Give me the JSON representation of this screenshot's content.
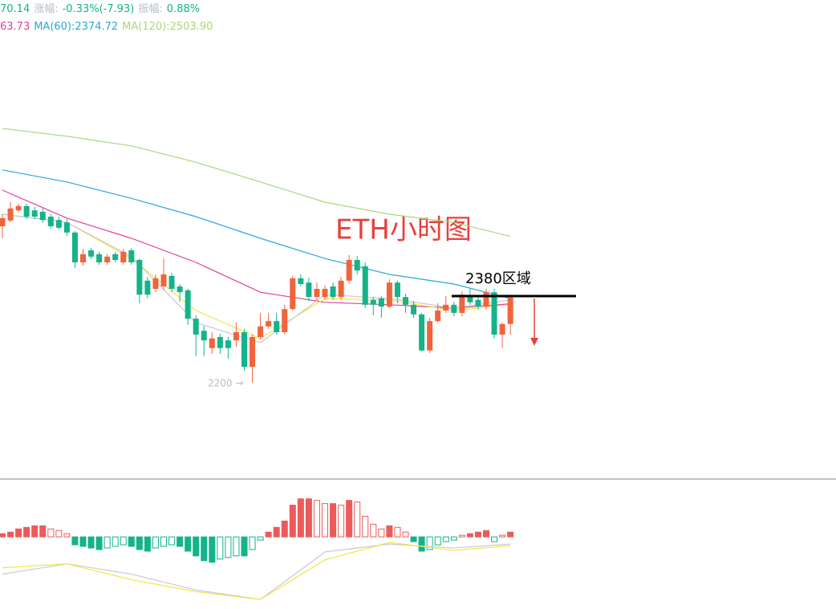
{
  "chart_data": {
    "type": "candlestick",
    "title": "ETH小时图",
    "header": [
      [
        {
          "text": "70.14",
          "color": "#14b38a"
        },
        {
          "text": "涨幅:",
          "color": "#b4bccb"
        },
        {
          "text": "-0.33%(-7.93)",
          "color": "#14b38a"
        },
        {
          "text": "振幅:",
          "color": "#b4bccb"
        },
        {
          "text": "0.88%",
          "color": "#14b38a"
        }
      ],
      [
        {
          "text": "63.73",
          "color": "#e0409a"
        },
        {
          "text": "MA(60):2374.72",
          "color": "#29a8d8"
        },
        {
          "text": "MA(120):2503.90",
          "color": "#a8d878"
        }
      ]
    ],
    "ylim": [
      2000,
      2990
    ],
    "up_color": "#f0643c",
    "down_color": "#14b38a",
    "open": [
      2525,
      2537,
      2558,
      2567,
      2558,
      2555,
      2545,
      2538,
      2533,
      2512,
      2450,
      2475,
      2467,
      2450,
      2467,
      2450,
      2475,
      2455,
      2412,
      2395,
      2400,
      2422,
      2400,
      2392,
      2333,
      2308,
      2272,
      2295,
      2288,
      2288,
      2305,
      2233,
      2295,
      2317,
      2328,
      2305,
      2353,
      2417,
      2408,
      2378,
      2378,
      2400,
      2378,
      2412,
      2455,
      2442,
      2372,
      2375,
      2358,
      2408,
      2378,
      2362,
      2342,
      2267,
      2328,
      2350,
      2362,
      2345,
      2378,
      2372,
      2358,
      2388,
      2300,
      2322
    ],
    "close": [
      2542,
      2562,
      2567,
      2545,
      2545,
      2538,
      2525,
      2522,
      2512,
      2450,
      2467,
      2462,
      2450,
      2462,
      2455,
      2472,
      2450,
      2383,
      2383,
      2417,
      2425,
      2395,
      2388,
      2333,
      2300,
      2288,
      2292,
      2272,
      2272,
      2305,
      2233,
      2295,
      2317,
      2328,
      2305,
      2353,
      2417,
      2405,
      2378,
      2395,
      2395,
      2378,
      2412,
      2455,
      2433,
      2362,
      2362,
      2358,
      2408,
      2378,
      2362,
      2342,
      2267,
      2328,
      2350,
      2362,
      2345,
      2383,
      2367,
      2358,
      2388,
      2300,
      2322,
      2377
    ],
    "high": [
      2550,
      2575,
      2572,
      2572,
      2565,
      2562,
      2550,
      2545,
      2540,
      2515,
      2478,
      2480,
      2472,
      2467,
      2472,
      2478,
      2480,
      2458,
      2420,
      2425,
      2458,
      2428,
      2405,
      2395,
      2340,
      2318,
      2305,
      2302,
      2295,
      2325,
      2312,
      2300,
      2345,
      2345,
      2345,
      2362,
      2422,
      2425,
      2418,
      2408,
      2402,
      2408,
      2420,
      2465,
      2463,
      2450,
      2378,
      2380,
      2415,
      2412,
      2385,
      2370,
      2345,
      2335,
      2365,
      2380,
      2368,
      2390,
      2395,
      2380,
      2395,
      2395,
      2325,
      2383
    ],
    "low": [
      2500,
      2533,
      2555,
      2540,
      2540,
      2532,
      2520,
      2518,
      2505,
      2438,
      2443,
      2457,
      2445,
      2445,
      2450,
      2445,
      2445,
      2365,
      2375,
      2388,
      2392,
      2388,
      2368,
      2320,
      2255,
      2255,
      2260,
      2260,
      2250,
      2275,
      2225,
      2200,
      2290,
      2312,
      2300,
      2300,
      2350,
      2400,
      2370,
      2370,
      2372,
      2372,
      2372,
      2405,
      2425,
      2355,
      2340,
      2335,
      2355,
      2365,
      2345,
      2335,
      2265,
      2262,
      2325,
      2345,
      2338,
      2338,
      2362,
      2352,
      2352,
      2292,
      2272,
      2300
    ],
    "ma_index": [
      0,
      8,
      16,
      24,
      32,
      40,
      48,
      56,
      63
    ],
    "ma_lines": [
      {
        "color": "#a8d878",
        "values": [
          2728,
          2712,
          2692,
          2658,
          2617,
          2575,
          2550,
          2533,
          2504
        ]
      },
      {
        "color": "#29a8d8",
        "values": [
          2642,
          2617,
          2583,
          2545,
          2500,
          2458,
          2425,
          2405,
          2375
        ]
      },
      {
        "color": "#e0409a",
        "values": [
          2600,
          2542,
          2500,
          2450,
          2388,
          2367,
          2362,
          2355,
          2364
        ]
      },
      {
        "color": "#f2e640",
        "values": [
          2550,
          2533,
          2458,
          2350,
          2292,
          2375,
          2372,
          2350,
          2362
        ]
      },
      {
        "color": "#c8c8d8",
        "values": [
          2550,
          2533,
          2462,
          2325,
          2283,
          2383,
          2375,
          2355,
          2372
        ]
      }
    ],
    "level": {
      "value": 2380,
      "label": "2380区域"
    },
    "low_note": {
      "value": 2200,
      "label": "2200 →"
    },
    "macd_ylim": [
      -90,
      70
    ],
    "macd": [
      4,
      6,
      10,
      12,
      14,
      14,
      10,
      8,
      4,
      -10,
      -12,
      -14,
      -16,
      -14,
      -12,
      -10,
      -12,
      -16,
      -18,
      -14,
      -12,
      -10,
      -12,
      -18,
      -24,
      -30,
      -32,
      -28,
      -26,
      -24,
      -24,
      -16,
      -4,
      6,
      12,
      20,
      40,
      48,
      48,
      46,
      42,
      42,
      40,
      46,
      44,
      26,
      16,
      10,
      14,
      12,
      6,
      -6,
      -18,
      -16,
      -10,
      -6,
      -4,
      2,
      4,
      6,
      8,
      -6,
      2,
      6
    ],
    "macd_index": [
      0,
      8,
      16,
      24,
      32,
      40,
      48,
      56,
      63
    ],
    "macd_lines": [
      {
        "color": "#c8c8d8",
        "values": [
          -47,
          -34,
          -47,
          -67,
          -79,
          -19,
          -9,
          -14,
          -9
        ]
      },
      {
        "color": "#f2e640",
        "values": [
          -39,
          -34,
          -54,
          -69,
          -79,
          -29,
          -7,
          -17,
          -11
        ]
      }
    ]
  }
}
